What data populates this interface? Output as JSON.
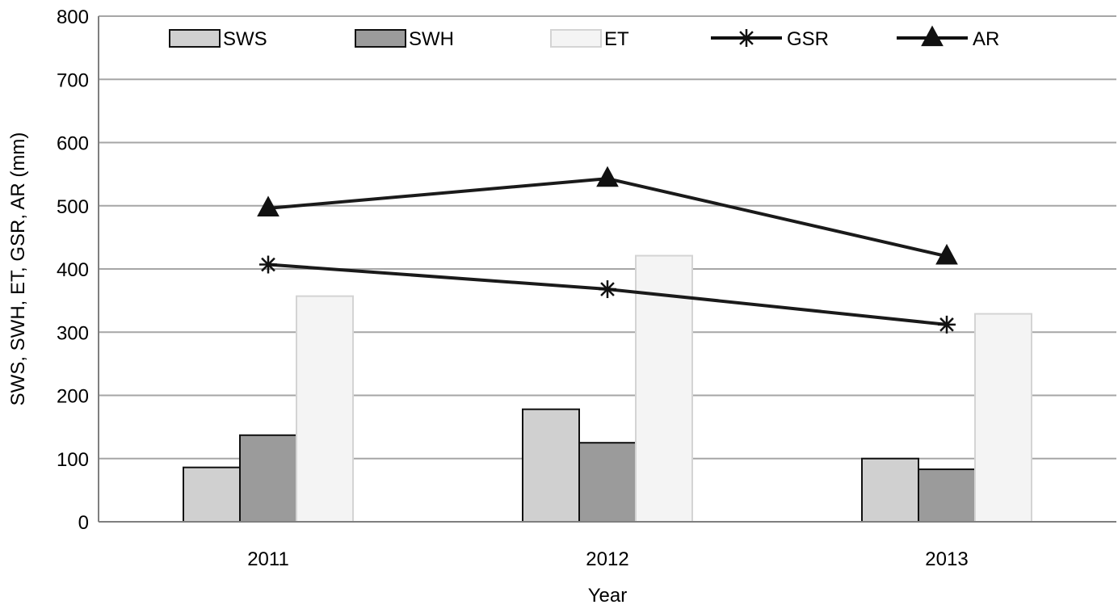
{
  "chart_data": {
    "type": "bar",
    "title": "",
    "xlabel": "Year",
    "ylabel": "SWS, SWH, ET, GSR, AR (mm)",
    "categories": [
      "2011",
      "2012",
      "2013"
    ],
    "ylim": [
      0,
      800
    ],
    "yticks": [
      0,
      100,
      200,
      300,
      400,
      500,
      600,
      700,
      800
    ],
    "grid": true,
    "legend_position": "top",
    "series": [
      {
        "name": "SWS",
        "type": "bar",
        "values": [
          86,
          178,
          100
        ],
        "color": "#d0d0d0"
      },
      {
        "name": "SWH",
        "type": "bar",
        "values": [
          137,
          125,
          83
        ],
        "color": "#9b9b9b"
      },
      {
        "name": "ET",
        "type": "bar",
        "values": [
          357,
          421,
          329
        ],
        "color": "#f4f4f4"
      },
      {
        "name": "GSR",
        "type": "line",
        "marker": "asterisk",
        "values": [
          407,
          368,
          312
        ],
        "color": "#1a1a1a"
      },
      {
        "name": "AR",
        "type": "line",
        "marker": "triangle",
        "values": [
          496,
          543,
          420
        ],
        "color": "#1a1a1a"
      }
    ]
  }
}
